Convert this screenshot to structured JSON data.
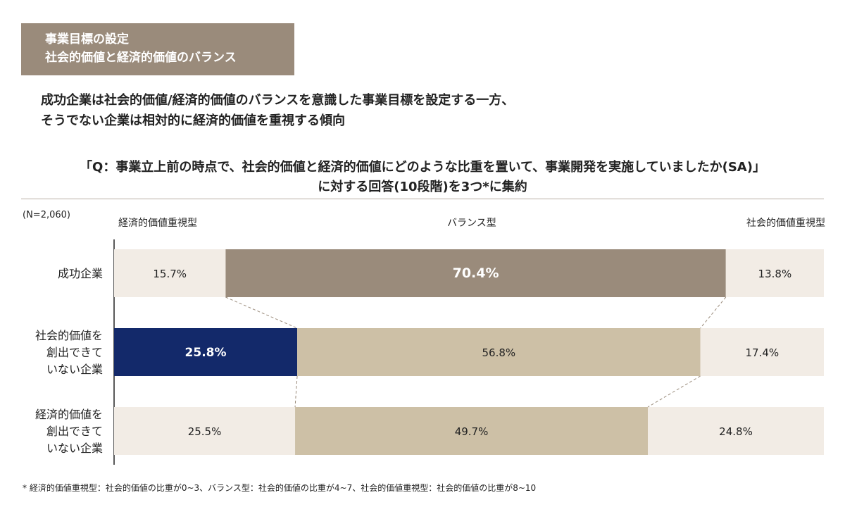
{
  "header": {
    "title_line1": "事業目標の設定",
    "title_line2": "社会的価値と経済的価値のバランス"
  },
  "headline": {
    "line1": "成功企業は社会的価値/経済的価値のバランスを意識した事業目標を設定する一方、",
    "line2": "そうでない企業は相対的に経済的価値を重視する傾向"
  },
  "question": {
    "line1": "「Q：事業立上前の時点で、社会的価値と経済的価値にどのような比重を置いて、事業開発を実施していましたか(SA)」",
    "line2": "に対する回答(10段階)を3つ*に集約"
  },
  "sample_size": "(N=2,060)",
  "footnote": "* 経済的価値重視型：社会的価値の比重が0~3、バランス型：社会的価値の比重が4~7、社会的価値重視型：社会的価値の比重が8~10",
  "colors": {
    "light": "#f2ece5",
    "highlight_taupe": "#9a8b7b",
    "medium": "#cdc0a6",
    "highlight_navy": "#13296a",
    "connector": "#9a8b7b"
  },
  "chart_data": {
    "type": "bar",
    "orientation": "horizontal",
    "stacked": true,
    "normalized": true,
    "series_headers": [
      "経済的価値重視型",
      "バランス型",
      "社会的価値重視型"
    ],
    "categories": [
      {
        "label_lines": [
          "成功企業"
        ],
        "values": [
          15.7,
          70.4,
          13.8
        ],
        "labels": [
          "15.7%",
          "70.4%",
          "13.8%"
        ]
      },
      {
        "label_lines": [
          "社会的価値を",
          "創出できて",
          "いない企業"
        ],
        "values": [
          25.8,
          56.8,
          17.4
        ],
        "labels": [
          "25.8%",
          "56.8%",
          "17.4%"
        ]
      },
      {
        "label_lines": [
          "経済的価値を",
          "創出できて",
          "いない企業"
        ],
        "values": [
          25.5,
          49.7,
          24.8
        ],
        "labels": [
          "25.5%",
          "49.7%",
          "24.8%"
        ]
      }
    ],
    "unit": "%"
  }
}
